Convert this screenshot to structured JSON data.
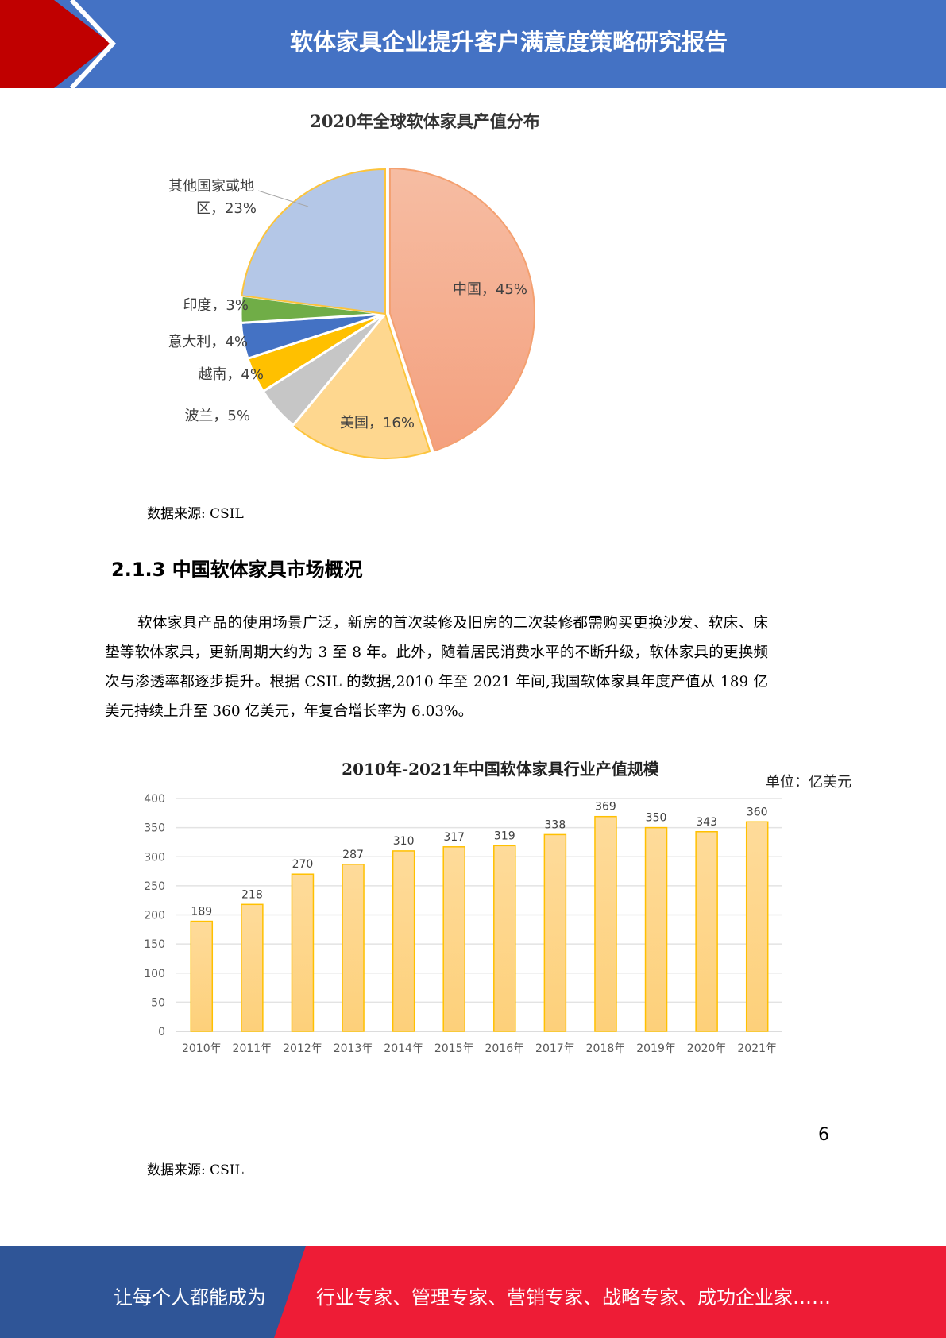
{
  "header": {
    "title": "软体家具企业提升客户满意度策略研究报告",
    "colors": {
      "band": "#4472c4",
      "arrow": "#c00000"
    }
  },
  "pie_source": "数据来源: CSIL",
  "section": {
    "title": "2.1.3 中国软体家具市场概况"
  },
  "body": {
    "paragraph": "软体家具产品的使用场景广泛，新房的首次装修及旧房的二次装修都需购买更换沙发、软床、床垫等软体家具，更新周期大约为 3 至 8 年。此外，随着居民消费水平的不断升级，软体家具的更换频次与渗透率都逐步提升。根据 CSIL 的数据,2010 年至 2021 年间,我国软体家具年度产值从 189 亿美元持续上升至 360 亿美元，年复合增长率为 6.03%。"
  },
  "bar_source": "数据来源: CSIL",
  "page_number": "6",
  "footer": {
    "left_text": "让每个人都能成为",
    "right_text": "行业专家、管理专家、营销专家、战略专家、成功企业家……",
    "colors": {
      "left": "#2f5597",
      "right": "#ee1c36"
    }
  },
  "chart_data": [
    {
      "type": "pie",
      "title": "2020年全球软体家具产值分布",
      "slices": [
        {
          "name": "中国",
          "value": 45,
          "label": "中国，45%",
          "color": "#f5a98a"
        },
        {
          "name": "美国",
          "value": 16,
          "label": "美国，16%",
          "color": "#fed78f"
        },
        {
          "name": "波兰",
          "value": 5,
          "label": "波兰，5%",
          "color": "#c6c6c6"
        },
        {
          "name": "越南",
          "value": 4,
          "label": "越南，4%",
          "color": "#ffc000"
        },
        {
          "name": "意大利",
          "value": 4,
          "label": "意大利，4%",
          "color": "#4472c4"
        },
        {
          "name": "印度",
          "value": 3,
          "label": "印度，3%",
          "color": "#70ad47"
        },
        {
          "name": "其他国家或地区",
          "value": 23,
          "label": "其他国家或地区，23%",
          "label_lines": [
            "其他国家或地",
            "区，23%"
          ],
          "color": "#b4c7e7"
        }
      ]
    },
    {
      "type": "bar",
      "title": "2010年-2021年中国软体家具行业产值规模",
      "unit": "单位：亿美元",
      "categories": [
        "2010年",
        "2011年",
        "2012年",
        "2013年",
        "2014年",
        "2015年",
        "2016年",
        "2017年",
        "2018年",
        "2019年",
        "2020年",
        "2021年"
      ],
      "values": [
        189,
        218,
        270,
        287,
        310,
        317,
        319,
        338,
        369,
        350,
        343,
        360
      ],
      "ylim": [
        0,
        400
      ],
      "yticks": [
        "0",
        "50",
        "100",
        "150",
        "200",
        "250",
        "300",
        "350",
        "400"
      ],
      "grid": true,
      "bar_color": "#fdd68b",
      "bar_border": "#ffc000"
    }
  ]
}
